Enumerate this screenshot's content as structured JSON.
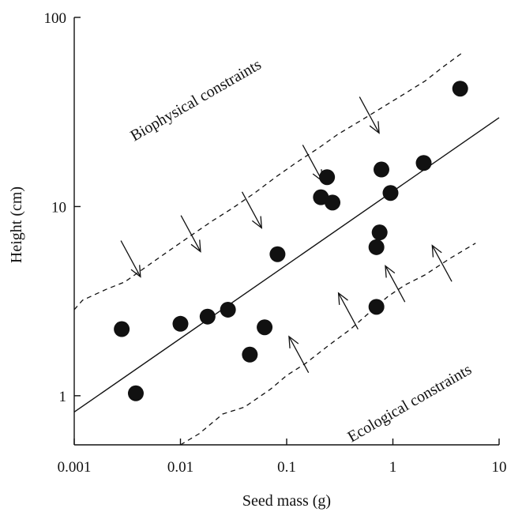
{
  "chart_data": {
    "type": "scatter",
    "title": "",
    "xlabel": "Seed mass (g)",
    "ylabel": "Height (cm)",
    "xscale": "log",
    "yscale": "log",
    "xlim": [
      0.001,
      10
    ],
    "ylim": [
      0.55,
      100
    ],
    "grid": false,
    "legend": "none",
    "x_ticks": [
      {
        "value": 0.001,
        "label": "0.001"
      },
      {
        "value": 0.01,
        "label": "0.01"
      },
      {
        "value": 0.1,
        "label": "0.1"
      },
      {
        "value": 1,
        "label": "1"
      },
      {
        "value": 10,
        "label": "10"
      }
    ],
    "y_ticks": [
      {
        "value": 1,
        "label": "1"
      },
      {
        "value": 10,
        "label": "10"
      },
      {
        "value": 100,
        "label": "100"
      }
    ],
    "points": [
      {
        "x": 0.0028,
        "y": 2.25
      },
      {
        "x": 0.0038,
        "y": 1.03
      },
      {
        "x": 0.01,
        "y": 2.4
      },
      {
        "x": 0.018,
        "y": 2.62
      },
      {
        "x": 0.028,
        "y": 2.85
      },
      {
        "x": 0.045,
        "y": 1.65
      },
      {
        "x": 0.062,
        "y": 2.3
      },
      {
        "x": 0.082,
        "y": 5.6
      },
      {
        "x": 0.21,
        "y": 11.2
      },
      {
        "x": 0.24,
        "y": 14.3
      },
      {
        "x": 0.27,
        "y": 10.5
      },
      {
        "x": 0.7,
        "y": 2.95
      },
      {
        "x": 0.7,
        "y": 6.1
      },
      {
        "x": 0.75,
        "y": 7.3
      },
      {
        "x": 0.78,
        "y": 15.7
      },
      {
        "x": 0.95,
        "y": 11.8
      },
      {
        "x": 1.95,
        "y": 17.0
      },
      {
        "x": 4.3,
        "y": 42.0
      }
    ],
    "regression_line": {
      "x": [
        0.001,
        10
      ],
      "y": [
        0.82,
        29.5
      ]
    },
    "upper_bound": {
      "x": [
        0.001,
        0.0012,
        0.002,
        0.003,
        0.005,
        0.008,
        0.012,
        0.02,
        0.03,
        0.05,
        0.08,
        0.12,
        0.2,
        0.3,
        0.5,
        0.8,
        1.2,
        2,
        3,
        4.5
      ],
      "y": [
        2.85,
        3.2,
        3.65,
        4.0,
        4.9,
        5.9,
        6.9,
        8.4,
        9.7,
        11.8,
        14.4,
        16.9,
        20.4,
        24.0,
        28.5,
        33.5,
        38.5,
        46.0,
        55.0,
        65.0
      ]
    },
    "lower_bound": {
      "x": [
        0.01,
        0.015,
        0.025,
        0.04,
        0.07,
        0.1,
        0.15,
        0.25,
        0.4,
        0.6,
        0.9,
        1.3,
        2,
        3.5,
        6
      ],
      "y": [
        0.55,
        0.63,
        0.8,
        0.87,
        1.08,
        1.28,
        1.48,
        1.85,
        2.25,
        2.75,
        3.35,
        3.85,
        4.35,
        5.35,
        6.4
      ]
    },
    "annotations": {
      "biophysical": "Biophysical constraints",
      "ecological": "Ecological constraints"
    },
    "arrows_down": [
      {
        "x": 0.0034,
        "y": 5.3
      },
      {
        "x": 0.0125,
        "y": 7.2
      },
      {
        "x": 0.047,
        "y": 9.6
      },
      {
        "x": 0.175,
        "y": 17.0
      },
      {
        "x": 0.6,
        "y": 30.5
      }
    ],
    "arrows_up": [
      {
        "x": 0.13,
        "y": 1.65
      },
      {
        "x": 0.38,
        "y": 2.8
      },
      {
        "x": 1.05,
        "y": 3.9
      },
      {
        "x": 2.9,
        "y": 5.0
      }
    ]
  }
}
